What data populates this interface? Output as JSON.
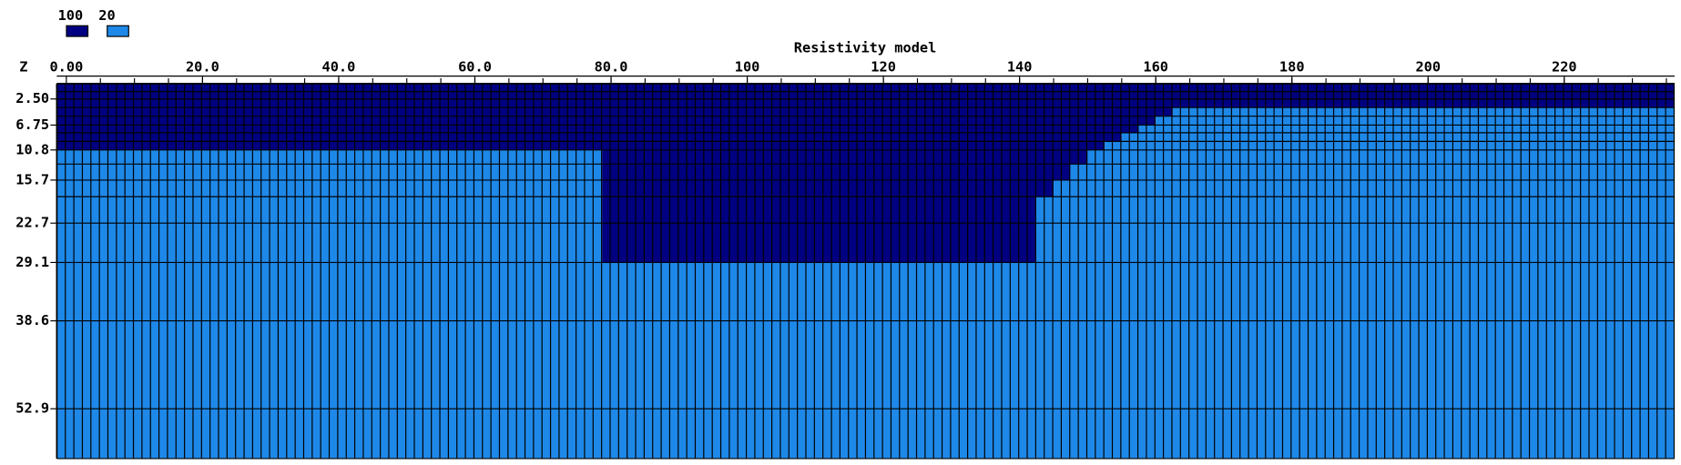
{
  "chart_data": {
    "type": "section",
    "title": "Resistivity model",
    "y_axis_label": "Z",
    "legend": [
      {
        "value": 100,
        "color": "#000080"
      },
      {
        "value": 20,
        "color": "#1e88e8"
      }
    ],
    "xlim": [
      -1.4,
      236.2
    ],
    "ylim": [
      0,
      61
    ],
    "xticks": [
      {
        "value": 0,
        "label": "0.00"
      },
      {
        "value": 20,
        "label": "20.0"
      },
      {
        "value": 40,
        "label": "40.0"
      },
      {
        "value": 60,
        "label": "60.0"
      },
      {
        "value": 80,
        "label": "80.0"
      },
      100,
      120,
      140,
      160,
      180,
      200,
      220
    ],
    "yticks": [
      2.5,
      6.75,
      10.8,
      15.7,
      22.7,
      29.1,
      38.6,
      52.9
    ],
    "ytick_labels": [
      "2.50",
      "6.75",
      "10.8",
      "15.7",
      "22.7",
      "29.1",
      "38.6",
      "52.9"
    ],
    "layers": [
      {
        "top": 0,
        "bottom": 1.3,
        "blocks": [
          {
            "x0": -1.4,
            "x1": 236.2,
            "value": 100
          }
        ]
      },
      {
        "top": 1.3,
        "bottom": 2.5,
        "blocks": [
          {
            "x0": -1.4,
            "x1": 236.2,
            "value": 100
          }
        ]
      },
      {
        "top": 2.5,
        "bottom": 3.9,
        "blocks": [
          {
            "x0": -1.4,
            "x1": 236.2,
            "value": 100
          }
        ]
      },
      {
        "top": 3.9,
        "bottom": 5.3,
        "blocks": [
          {
            "x0": -1.4,
            "x1": 162.5,
            "value": 100
          },
          {
            "x0": 162.5,
            "x1": 236.2,
            "value": 20
          }
        ]
      },
      {
        "top": 5.3,
        "bottom": 6.75,
        "blocks": [
          {
            "x0": -1.4,
            "x1": 160,
            "value": 100
          },
          {
            "x0": 160,
            "x1": 236.2,
            "value": 20
          }
        ]
      },
      {
        "top": 6.75,
        "bottom": 8.0,
        "blocks": [
          {
            "x0": -1.4,
            "x1": 157.5,
            "value": 100
          },
          {
            "x0": 157.5,
            "x1": 236.2,
            "value": 20
          }
        ]
      },
      {
        "top": 8.0,
        "bottom": 9.4,
        "blocks": [
          {
            "x0": -1.4,
            "x1": 155,
            "value": 100
          },
          {
            "x0": 155,
            "x1": 236.2,
            "value": 20
          }
        ]
      },
      {
        "top": 9.4,
        "bottom": 10.8,
        "blocks": [
          {
            "x0": -1.4,
            "x1": 152.5,
            "value": 100
          },
          {
            "x0": 152.5,
            "x1": 236.2,
            "value": 20
          }
        ]
      },
      {
        "top": 10.8,
        "bottom": 13.1,
        "blocks": [
          {
            "x0": -1.4,
            "x1": 78.7,
            "value": 20
          },
          {
            "x0": 78.7,
            "x1": 150,
            "value": 100
          },
          {
            "x0": 150,
            "x1": 236.2,
            "value": 20
          }
        ]
      },
      {
        "top": 13.1,
        "bottom": 15.7,
        "blocks": [
          {
            "x0": -1.4,
            "x1": 78.7,
            "value": 20
          },
          {
            "x0": 78.7,
            "x1": 147.4,
            "value": 100
          },
          {
            "x0": 147.4,
            "x1": 236.2,
            "value": 20
          }
        ]
      },
      {
        "top": 15.7,
        "bottom": 18.4,
        "blocks": [
          {
            "x0": -1.4,
            "x1": 78.7,
            "value": 20
          },
          {
            "x0": 78.7,
            "x1": 145,
            "value": 100
          },
          {
            "x0": 145,
            "x1": 236.2,
            "value": 20
          }
        ]
      },
      {
        "top": 18.4,
        "bottom": 22.7,
        "blocks": [
          {
            "x0": -1.4,
            "x1": 78.7,
            "value": 20
          },
          {
            "x0": 78.7,
            "x1": 142.4,
            "value": 100
          },
          {
            "x0": 142.4,
            "x1": 236.2,
            "value": 20
          }
        ]
      },
      {
        "top": 22.7,
        "bottom": 29.1,
        "blocks": [
          {
            "x0": -1.4,
            "x1": 78.7,
            "value": 20
          },
          {
            "x0": 78.7,
            "x1": 142.4,
            "value": 100
          },
          {
            "x0": 142.4,
            "x1": 236.2,
            "value": 20
          }
        ]
      },
      {
        "top": 29.1,
        "bottom": 38.6,
        "blocks": [
          {
            "x0": -1.4,
            "x1": 236.2,
            "value": 20
          }
        ]
      },
      {
        "top": 38.6,
        "bottom": 52.9,
        "blocks": [
          {
            "x0": -1.4,
            "x1": 236.2,
            "value": 20
          }
        ]
      },
      {
        "top": 52.9,
        "bottom": 61,
        "blocks": [
          {
            "x0": -1.4,
            "x1": 236.2,
            "value": 20
          }
        ]
      }
    ]
  }
}
